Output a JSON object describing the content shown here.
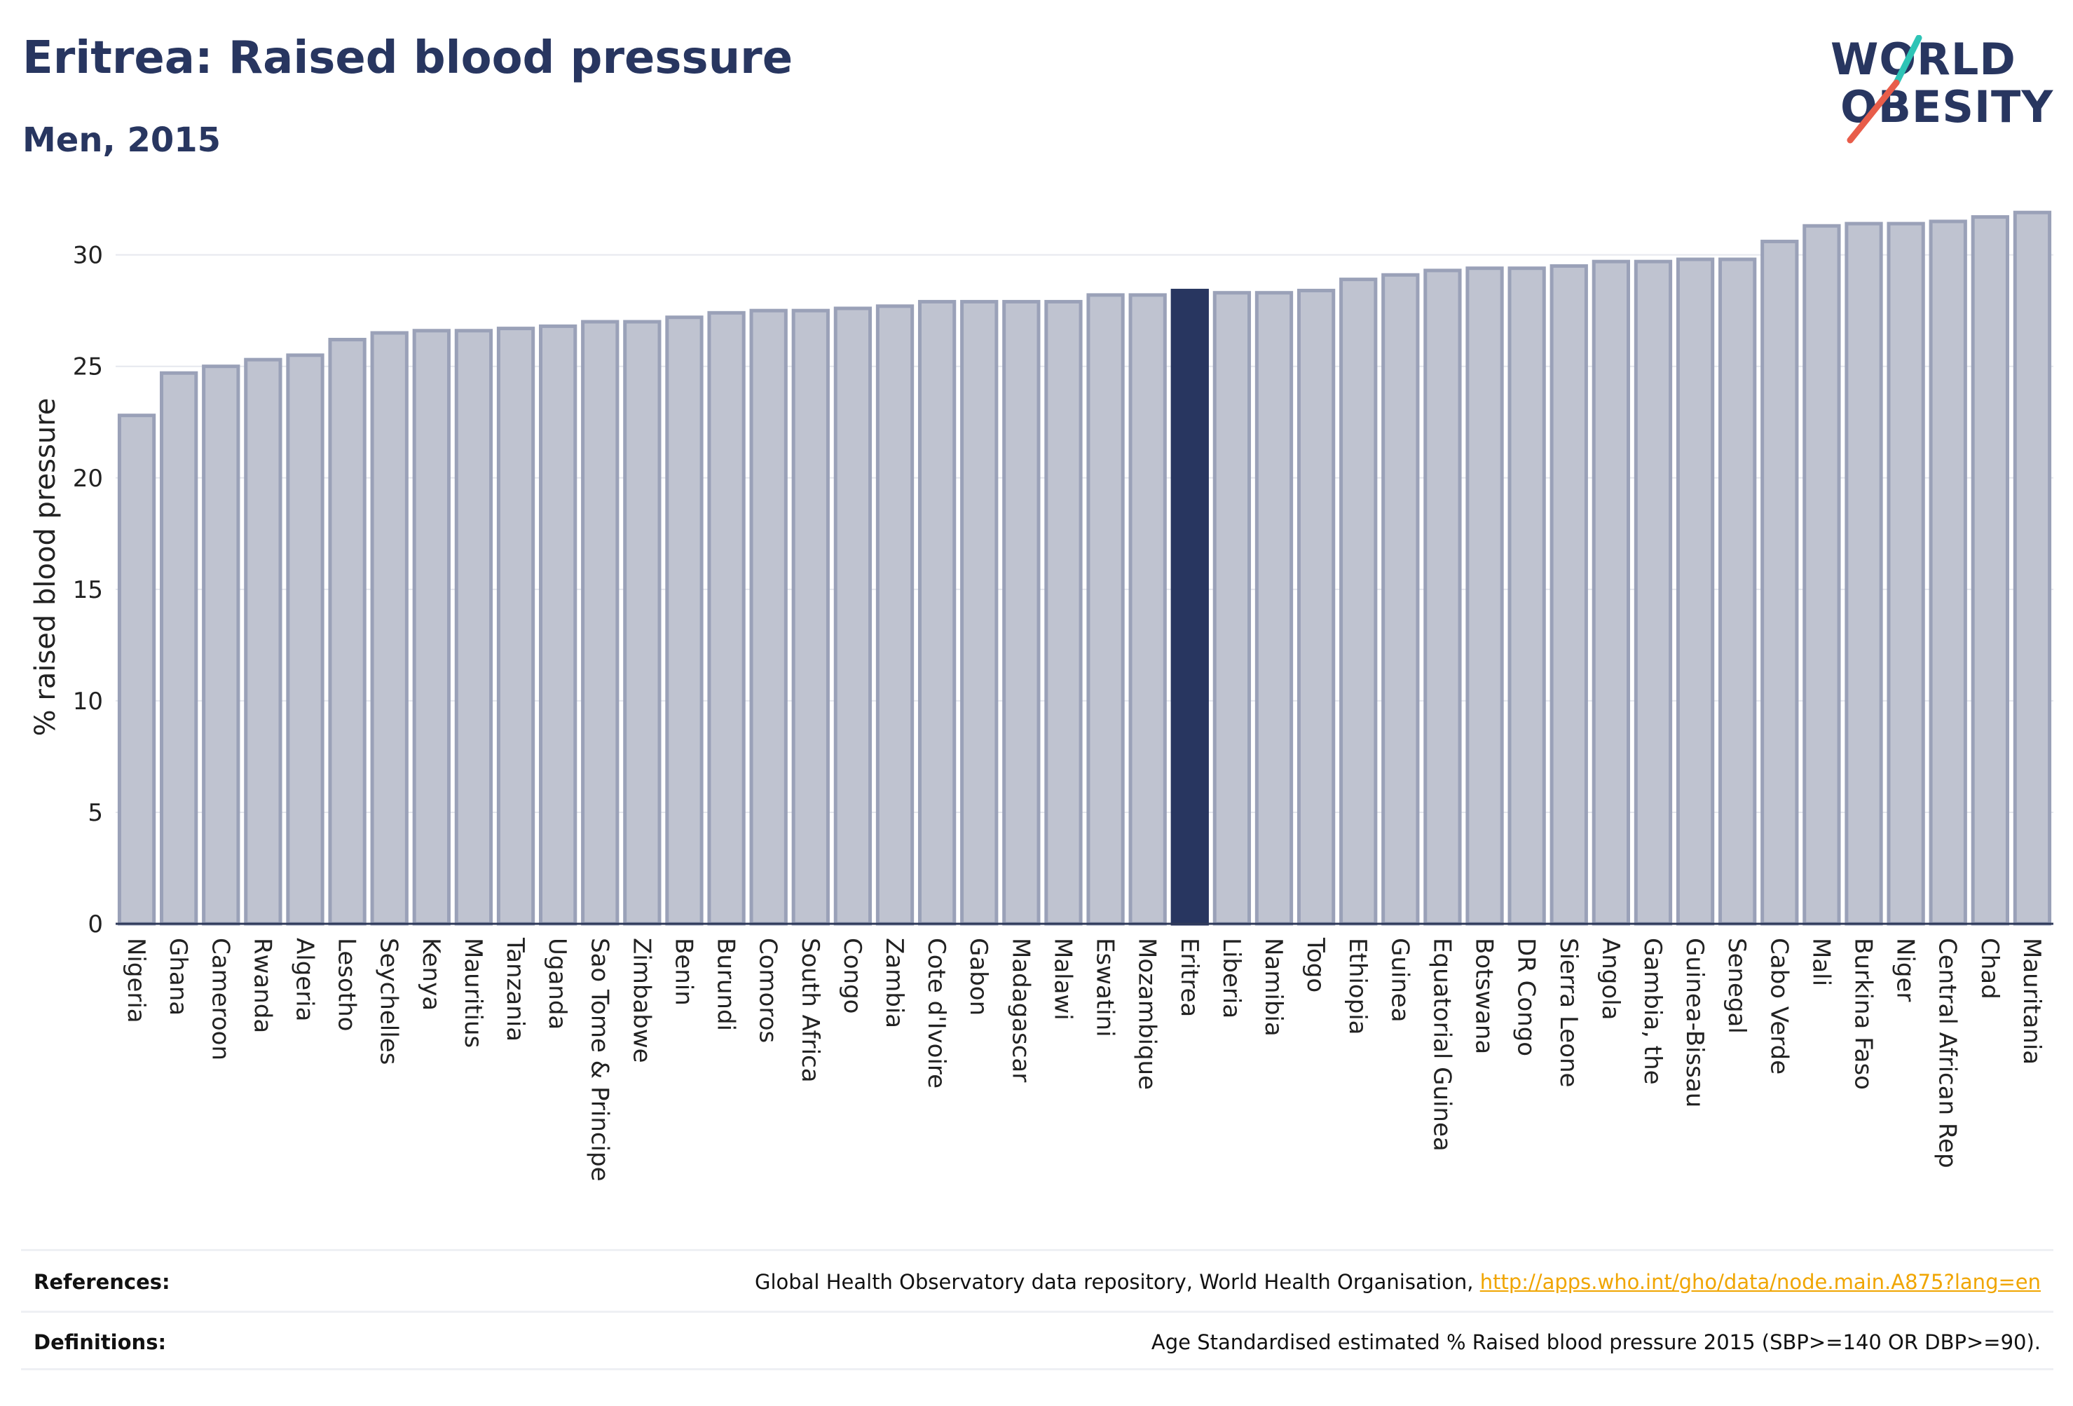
{
  "header": {
    "title": "Eritrea: Raised blood pressure",
    "subtitle": "Men, 2015"
  },
  "logo": {
    "line1": "WORLD",
    "line2": "OBESITY",
    "accent_colors": [
      "#2ec4b6",
      "#e85d4a"
    ]
  },
  "chart_data": {
    "type": "bar",
    "title": "Eritrea: Raised blood pressure",
    "subtitle": "Men, 2015",
    "xlabel": "",
    "ylabel": "% raised blood pressure",
    "ylim": [
      0,
      32
    ],
    "yticks": [
      0,
      5,
      10,
      15,
      20,
      25,
      30
    ],
    "grid": true,
    "highlight": "Eritrea",
    "colors": {
      "bar_fill": "#bfc3d0",
      "bar_stroke": "#9aa1b8",
      "highlight": "#283660"
    },
    "categories": [
      "Nigeria",
      "Ghana",
      "Cameroon",
      "Rwanda",
      "Algeria",
      "Lesotho",
      "Seychelles",
      "Kenya",
      "Mauritius",
      "Tanzania",
      "Uganda",
      "Sao Tome & Principe",
      "Zimbabwe",
      "Benin",
      "Burundi",
      "Comoros",
      "South Africa",
      "Congo",
      "Zambia",
      "Cote d'Ivoire",
      "Gabon",
      "Madagascar",
      "Malawi",
      "Eswatini",
      "Mozambique",
      "Eritrea",
      "Liberia",
      "Namibia",
      "Togo",
      "Ethiopia",
      "Guinea",
      "Equatorial Guinea",
      "Botswana",
      "DR Congo",
      "Sierra Leone",
      "Angola",
      "Gambia, the",
      "Guinea-Bissau",
      "Senegal",
      "Cabo Verde",
      "Mali",
      "Burkina Faso",
      "Niger",
      "Central African Rep",
      "Chad",
      "Mauritania"
    ],
    "values": [
      22.8,
      24.7,
      25.0,
      25.3,
      25.5,
      26.2,
      26.5,
      26.6,
      26.6,
      26.7,
      26.8,
      27.0,
      27.0,
      27.2,
      27.4,
      27.5,
      27.5,
      27.6,
      27.7,
      27.9,
      27.9,
      27.9,
      27.9,
      28.2,
      28.2,
      28.4,
      28.3,
      28.3,
      28.4,
      28.9,
      29.1,
      29.3,
      29.4,
      29.4,
      29.5,
      29.7,
      29.7,
      29.8,
      29.8,
      30.6,
      31.3,
      31.4,
      31.4,
      31.5,
      31.7,
      31.9
    ]
  },
  "footer": {
    "references_label": "References:",
    "references_text": "Global Health Observatory data repository, World Health Organisation,",
    "references_link": "http://apps.who.int/gho/data/node.main.A875?lang=en",
    "definitions_label": "Definitions:",
    "definitions_text": "Age Standardised estimated % Raised blood pressure 2015 (SBP>=140 OR DBP>=90)."
  }
}
